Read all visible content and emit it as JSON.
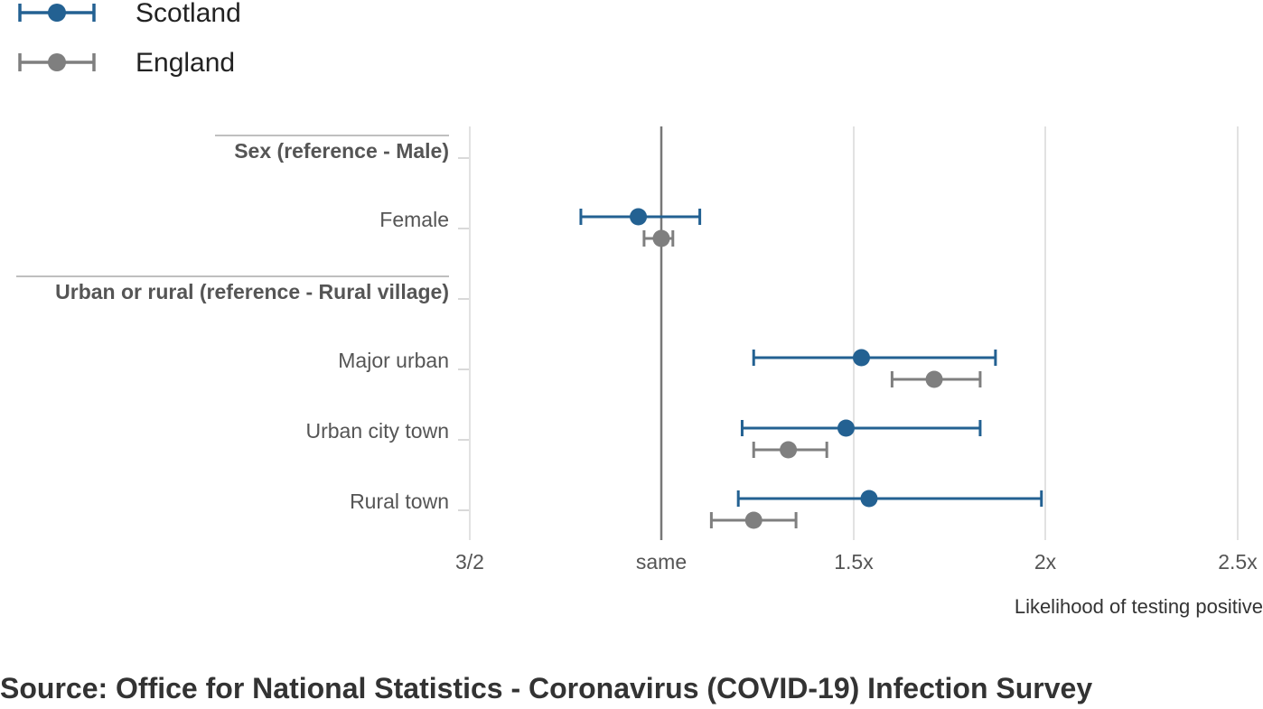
{
  "chart_data": {
    "type": "forest",
    "xlabel": "Likelihood of testing positive",
    "x_ticks": [
      {
        "value": 0.6667,
        "label": "3/2"
      },
      {
        "value": 1.0,
        "label": "same"
      },
      {
        "value": 1.5,
        "label": "1.5x"
      },
      {
        "value": 2.0,
        "label": "2x"
      },
      {
        "value": 2.5,
        "label": "2.5x"
      }
    ],
    "xlim": [
      0.6667,
      2.5
    ],
    "reference_value": 1.0,
    "grid": true,
    "legend_placement": "top-left",
    "series": [
      {
        "name": "Scotland",
        "color": "#236192"
      },
      {
        "name": "England",
        "color": "#7f7f7f"
      }
    ],
    "rows": [
      {
        "label": "Sex (reference - Male)",
        "kind": "group"
      },
      {
        "label": "Female",
        "kind": "category",
        "values": [
          {
            "series": "Scotland",
            "estimate": 0.96,
            "low": 0.86,
            "high": 1.1
          },
          {
            "series": "England",
            "estimate": 1.0,
            "low": 0.97,
            "high": 1.03
          }
        ]
      },
      {
        "label": "Urban or rural (reference - Rural village)",
        "kind": "group"
      },
      {
        "label": "Major urban",
        "kind": "category",
        "values": [
          {
            "series": "Scotland",
            "estimate": 1.52,
            "low": 1.24,
            "high": 1.87
          },
          {
            "series": "England",
            "estimate": 1.71,
            "low": 1.6,
            "high": 1.83
          }
        ]
      },
      {
        "label": "Urban city town",
        "kind": "category",
        "values": [
          {
            "series": "Scotland",
            "estimate": 1.48,
            "low": 1.21,
            "high": 1.83
          },
          {
            "series": "England",
            "estimate": 1.33,
            "low": 1.24,
            "high": 1.43
          }
        ]
      },
      {
        "label": "Rural town",
        "kind": "category",
        "values": [
          {
            "series": "Scotland",
            "estimate": 1.54,
            "low": 1.2,
            "high": 1.99
          },
          {
            "series": "England",
            "estimate": 1.24,
            "low": 1.13,
            "high": 1.35
          }
        ]
      }
    ]
  },
  "source": "Source: Office for National Statistics - Coronavirus (COVID-19) Infection Survey"
}
